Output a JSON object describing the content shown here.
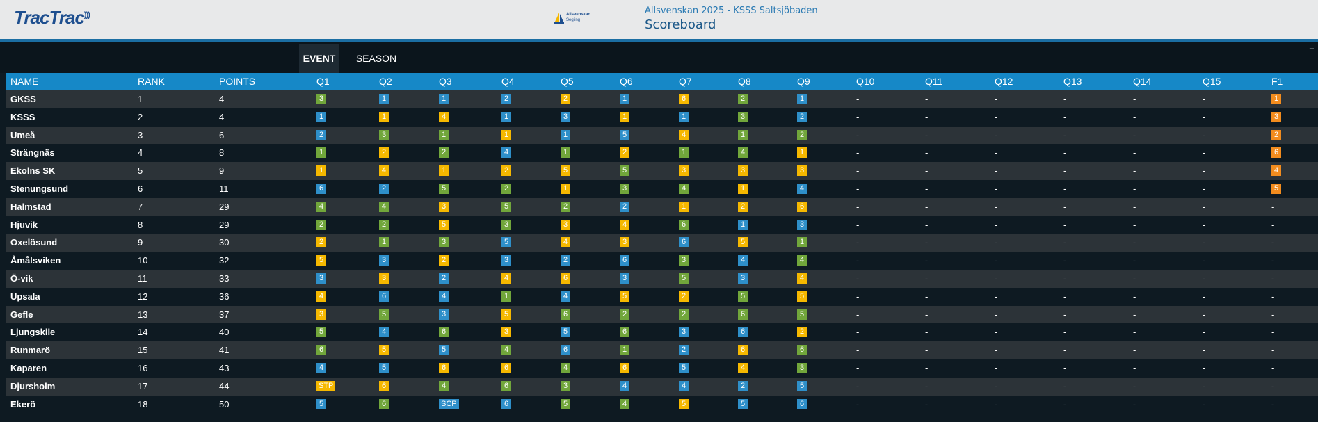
{
  "header": {
    "logo_text": "TracTrac",
    "event_logo": {
      "line1": "Allsvenskan",
      "line2": "Segling"
    },
    "event_name": "Allsvenskan 2025 - KSSS Saltsjöbaden",
    "page_title": "Scoreboard",
    "collapse_label": "–"
  },
  "tabs": [
    {
      "label": "EVENT",
      "active": true
    },
    {
      "label": "SEASON",
      "active": false
    }
  ],
  "colors": {
    "1": "#2e8fc9",
    "2": "#71a63b",
    "3": "#f5ac11",
    "4": "#ff9900",
    "5": "#71a63b",
    "6": "#f5ac11",
    "blue": "#2e8fc9",
    "green": "#71a63b",
    "yellow": "#f5b800",
    "orange": "#f28c1e"
  },
  "columns": [
    "NAME",
    "RANK",
    "POINTS",
    "Q1",
    "Q2",
    "Q3",
    "Q4",
    "Q5",
    "Q6",
    "Q7",
    "Q8",
    "Q9",
    "Q10",
    "Q11",
    "Q12",
    "Q13",
    "Q14",
    "Q15",
    "F1"
  ],
  "rows": [
    {
      "name": "GKSS",
      "rank": "1",
      "points": "4",
      "races": [
        [
          "3",
          "g"
        ],
        [
          "1",
          "b"
        ],
        [
          "1",
          "b"
        ],
        [
          "2",
          "b"
        ],
        [
          "2",
          "y"
        ],
        [
          "1",
          "b"
        ],
        [
          "6",
          "y"
        ],
        [
          "2",
          "g"
        ],
        [
          "1",
          "b"
        ],
        [
          "-",
          ""
        ],
        [
          "-",
          ""
        ],
        [
          "-",
          ""
        ],
        [
          "-",
          ""
        ],
        [
          "-",
          ""
        ],
        [
          "-",
          ""
        ],
        [
          "1",
          "o"
        ]
      ]
    },
    {
      "name": "KSSS",
      "rank": "2",
      "points": "4",
      "races": [
        [
          "1",
          "b"
        ],
        [
          "1",
          "y"
        ],
        [
          "4",
          "y"
        ],
        [
          "1",
          "b"
        ],
        [
          "3",
          "b"
        ],
        [
          "1",
          "y"
        ],
        [
          "1",
          "b"
        ],
        [
          "3",
          "g"
        ],
        [
          "2",
          "b"
        ],
        [
          "-",
          ""
        ],
        [
          "-",
          ""
        ],
        [
          "-",
          ""
        ],
        [
          "-",
          ""
        ],
        [
          "-",
          ""
        ],
        [
          "-",
          ""
        ],
        [
          "3",
          "o"
        ]
      ]
    },
    {
      "name": "Umeå",
      "rank": "3",
      "points": "6",
      "races": [
        [
          "2",
          "b"
        ],
        [
          "3",
          "g"
        ],
        [
          "1",
          "g"
        ],
        [
          "1",
          "y"
        ],
        [
          "1",
          "b"
        ],
        [
          "5",
          "b"
        ],
        [
          "4",
          "y"
        ],
        [
          "1",
          "g"
        ],
        [
          "2",
          "g"
        ],
        [
          "-",
          ""
        ],
        [
          "-",
          ""
        ],
        [
          "-",
          ""
        ],
        [
          "-",
          ""
        ],
        [
          "-",
          ""
        ],
        [
          "-",
          ""
        ],
        [
          "2",
          "o"
        ]
      ]
    },
    {
      "name": "Strängnäs",
      "rank": "4",
      "points": "8",
      "races": [
        [
          "1",
          "g"
        ],
        [
          "2",
          "y"
        ],
        [
          "2",
          "g"
        ],
        [
          "4",
          "b"
        ],
        [
          "1",
          "g"
        ],
        [
          "2",
          "y"
        ],
        [
          "1",
          "g"
        ],
        [
          "4",
          "g"
        ],
        [
          "1",
          "y"
        ],
        [
          "-",
          ""
        ],
        [
          "-",
          ""
        ],
        [
          "-",
          ""
        ],
        [
          "-",
          ""
        ],
        [
          "-",
          ""
        ],
        [
          "-",
          ""
        ],
        [
          "6",
          "o"
        ]
      ]
    },
    {
      "name": "Ekolns SK",
      "rank": "5",
      "points": "9",
      "races": [
        [
          "1",
          "y"
        ],
        [
          "4",
          "y"
        ],
        [
          "1",
          "y"
        ],
        [
          "2",
          "y"
        ],
        [
          "5",
          "y"
        ],
        [
          "5",
          "g"
        ],
        [
          "3",
          "y"
        ],
        [
          "3",
          "y"
        ],
        [
          "3",
          "y"
        ],
        [
          "-",
          ""
        ],
        [
          "-",
          ""
        ],
        [
          "-",
          ""
        ],
        [
          "-",
          ""
        ],
        [
          "-",
          ""
        ],
        [
          "-",
          ""
        ],
        [
          "4",
          "o"
        ]
      ]
    },
    {
      "name": "Stenungsund",
      "rank": "6",
      "points": "11",
      "races": [
        [
          "6",
          "b"
        ],
        [
          "2",
          "b"
        ],
        [
          "5",
          "g"
        ],
        [
          "2",
          "g"
        ],
        [
          "1",
          "y"
        ],
        [
          "3",
          "g"
        ],
        [
          "4",
          "g"
        ],
        [
          "1",
          "y"
        ],
        [
          "4",
          "b"
        ],
        [
          "-",
          ""
        ],
        [
          "-",
          ""
        ],
        [
          "-",
          ""
        ],
        [
          "-",
          ""
        ],
        [
          "-",
          ""
        ],
        [
          "-",
          ""
        ],
        [
          "5",
          "o"
        ]
      ]
    },
    {
      "name": "Halmstad",
      "rank": "7",
      "points": "29",
      "races": [
        [
          "4",
          "g"
        ],
        [
          "4",
          "g"
        ],
        [
          "3",
          "y"
        ],
        [
          "5",
          "g"
        ],
        [
          "2",
          "g"
        ],
        [
          "2",
          "b"
        ],
        [
          "1",
          "y"
        ],
        [
          "2",
          "y"
        ],
        [
          "6",
          "y"
        ],
        [
          "-",
          ""
        ],
        [
          "-",
          ""
        ],
        [
          "-",
          ""
        ],
        [
          "-",
          ""
        ],
        [
          "-",
          ""
        ],
        [
          "-",
          ""
        ],
        [
          "-",
          ""
        ]
      ]
    },
    {
      "name": "Hjuvik",
      "rank": "8",
      "points": "29",
      "races": [
        [
          "2",
          "g"
        ],
        [
          "2",
          "g"
        ],
        [
          "5",
          "y"
        ],
        [
          "3",
          "g"
        ],
        [
          "3",
          "y"
        ],
        [
          "4",
          "y"
        ],
        [
          "6",
          "g"
        ],
        [
          "1",
          "b"
        ],
        [
          "3",
          "b"
        ],
        [
          "-",
          ""
        ],
        [
          "-",
          ""
        ],
        [
          "-",
          ""
        ],
        [
          "-",
          ""
        ],
        [
          "-",
          ""
        ],
        [
          "-",
          ""
        ],
        [
          "-",
          ""
        ]
      ]
    },
    {
      "name": "Oxelösund",
      "rank": "9",
      "points": "30",
      "races": [
        [
          "2",
          "y"
        ],
        [
          "1",
          "g"
        ],
        [
          "3",
          "g"
        ],
        [
          "5",
          "b"
        ],
        [
          "4",
          "y"
        ],
        [
          "3",
          "y"
        ],
        [
          "6",
          "b"
        ],
        [
          "5",
          "y"
        ],
        [
          "1",
          "g"
        ],
        [
          "-",
          ""
        ],
        [
          "-",
          ""
        ],
        [
          "-",
          ""
        ],
        [
          "-",
          ""
        ],
        [
          "-",
          ""
        ],
        [
          "-",
          ""
        ],
        [
          "-",
          ""
        ]
      ]
    },
    {
      "name": "Åmålsviken",
      "rank": "10",
      "points": "32",
      "races": [
        [
          "5",
          "y"
        ],
        [
          "3",
          "b"
        ],
        [
          "2",
          "y"
        ],
        [
          "3",
          "b"
        ],
        [
          "2",
          "b"
        ],
        [
          "6",
          "b"
        ],
        [
          "3",
          "g"
        ],
        [
          "4",
          "b"
        ],
        [
          "4",
          "g"
        ],
        [
          "-",
          ""
        ],
        [
          "-",
          ""
        ],
        [
          "-",
          ""
        ],
        [
          "-",
          ""
        ],
        [
          "-",
          ""
        ],
        [
          "-",
          ""
        ],
        [
          "-",
          ""
        ]
      ]
    },
    {
      "name": "Ö-vik",
      "rank": "11",
      "points": "33",
      "races": [
        [
          "3",
          "b"
        ],
        [
          "3",
          "y"
        ],
        [
          "2",
          "b"
        ],
        [
          "4",
          "y"
        ],
        [
          "6",
          "y"
        ],
        [
          "3",
          "b"
        ],
        [
          "5",
          "g"
        ],
        [
          "3",
          "b"
        ],
        [
          "4",
          "y"
        ],
        [
          "-",
          ""
        ],
        [
          "-",
          ""
        ],
        [
          "-",
          ""
        ],
        [
          "-",
          ""
        ],
        [
          "-",
          ""
        ],
        [
          "-",
          ""
        ],
        [
          "-",
          ""
        ]
      ]
    },
    {
      "name": "Upsala",
      "rank": "12",
      "points": "36",
      "races": [
        [
          "4",
          "y"
        ],
        [
          "6",
          "b"
        ],
        [
          "4",
          "b"
        ],
        [
          "1",
          "g"
        ],
        [
          "4",
          "b"
        ],
        [
          "5",
          "y"
        ],
        [
          "2",
          "y"
        ],
        [
          "5",
          "g"
        ],
        [
          "5",
          "y"
        ],
        [
          "-",
          ""
        ],
        [
          "-",
          ""
        ],
        [
          "-",
          ""
        ],
        [
          "-",
          ""
        ],
        [
          "-",
          ""
        ],
        [
          "-",
          ""
        ],
        [
          "-",
          ""
        ]
      ]
    },
    {
      "name": "Gefle",
      "rank": "13",
      "points": "37",
      "races": [
        [
          "3",
          "y"
        ],
        [
          "5",
          "g"
        ],
        [
          "3",
          "b"
        ],
        [
          "5",
          "y"
        ],
        [
          "6",
          "g"
        ],
        [
          "2",
          "g"
        ],
        [
          "2",
          "g"
        ],
        [
          "6",
          "g"
        ],
        [
          "5",
          "g"
        ],
        [
          "-",
          ""
        ],
        [
          "-",
          ""
        ],
        [
          "-",
          ""
        ],
        [
          "-",
          ""
        ],
        [
          "-",
          ""
        ],
        [
          "-",
          ""
        ],
        [
          "-",
          ""
        ]
      ]
    },
    {
      "name": "Ljungskile",
      "rank": "14",
      "points": "40",
      "races": [
        [
          "5",
          "g"
        ],
        [
          "4",
          "b"
        ],
        [
          "6",
          "g"
        ],
        [
          "3",
          "y"
        ],
        [
          "5",
          "b"
        ],
        [
          "6",
          "g"
        ],
        [
          "3",
          "b"
        ],
        [
          "6",
          "b"
        ],
        [
          "2",
          "y"
        ],
        [
          "-",
          ""
        ],
        [
          "-",
          ""
        ],
        [
          "-",
          ""
        ],
        [
          "-",
          ""
        ],
        [
          "-",
          ""
        ],
        [
          "-",
          ""
        ],
        [
          "-",
          ""
        ]
      ]
    },
    {
      "name": "Runmarö",
      "rank": "15",
      "points": "41",
      "races": [
        [
          "6",
          "g"
        ],
        [
          "5",
          "y"
        ],
        [
          "5",
          "b"
        ],
        [
          "4",
          "g"
        ],
        [
          "6",
          "b"
        ],
        [
          "1",
          "g"
        ],
        [
          "2",
          "b"
        ],
        [
          "6",
          "y"
        ],
        [
          "6",
          "g"
        ],
        [
          "-",
          ""
        ],
        [
          "-",
          ""
        ],
        [
          "-",
          ""
        ],
        [
          "-",
          ""
        ],
        [
          "-",
          ""
        ],
        [
          "-",
          ""
        ],
        [
          "-",
          ""
        ]
      ]
    },
    {
      "name": "Kaparen",
      "rank": "16",
      "points": "43",
      "races": [
        [
          "4",
          "b"
        ],
        [
          "5",
          "b"
        ],
        [
          "6",
          "y"
        ],
        [
          "6",
          "y"
        ],
        [
          "4",
          "g"
        ],
        [
          "6",
          "y"
        ],
        [
          "5",
          "b"
        ],
        [
          "4",
          "y"
        ],
        [
          "3",
          "g"
        ],
        [
          "-",
          ""
        ],
        [
          "-",
          ""
        ],
        [
          "-",
          ""
        ],
        [
          "-",
          ""
        ],
        [
          "-",
          ""
        ],
        [
          "-",
          ""
        ],
        [
          "-",
          ""
        ]
      ]
    },
    {
      "name": "Djursholm",
      "rank": "17",
      "points": "44",
      "races": [
        [
          "STP",
          "y"
        ],
        [
          "6",
          "y"
        ],
        [
          "4",
          "g"
        ],
        [
          "6",
          "g"
        ],
        [
          "3",
          "g"
        ],
        [
          "4",
          "b"
        ],
        [
          "4",
          "b"
        ],
        [
          "2",
          "b"
        ],
        [
          "5",
          "b"
        ],
        [
          "-",
          ""
        ],
        [
          "-",
          ""
        ],
        [
          "-",
          ""
        ],
        [
          "-",
          ""
        ],
        [
          "-",
          ""
        ],
        [
          "-",
          ""
        ],
        [
          "-",
          ""
        ]
      ]
    },
    {
      "name": "Ekerö",
      "rank": "18",
      "points": "50",
      "races": [
        [
          "5",
          "b"
        ],
        [
          "6",
          "g"
        ],
        [
          "SCP",
          "b"
        ],
        [
          "6",
          "b"
        ],
        [
          "5",
          "g"
        ],
        [
          "4",
          "g"
        ],
        [
          "5",
          "y"
        ],
        [
          "5",
          "b"
        ],
        [
          "6",
          "b"
        ],
        [
          "-",
          ""
        ],
        [
          "-",
          ""
        ],
        [
          "-",
          ""
        ],
        [
          "-",
          ""
        ],
        [
          "-",
          ""
        ],
        [
          "-",
          ""
        ],
        [
          "-",
          ""
        ]
      ]
    }
  ]
}
